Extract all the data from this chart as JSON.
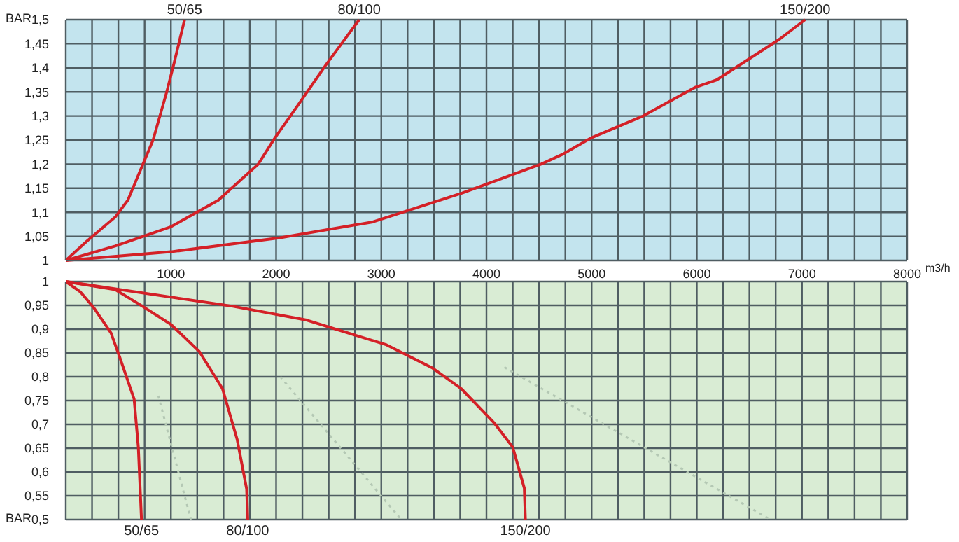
{
  "chart_data": [
    {
      "type": "line",
      "xlabel": "m3/h",
      "ylabel": "BAR",
      "xlim": [
        0,
        8000
      ],
      "xticks": [
        {
          "value": 0,
          "label": null
        },
        {
          "value": 250,
          "label": null
        },
        {
          "value": 500,
          "label": null
        },
        {
          "value": 750,
          "label": null
        },
        1000,
        {
          "value": 1250,
          "label": null
        },
        {
          "value": 1500,
          "label": null
        },
        {
          "value": 1750,
          "label": null
        },
        2000,
        {
          "value": 2250,
          "label": null
        },
        {
          "value": 2500,
          "label": null
        },
        {
          "value": 2750,
          "label": null
        },
        3000,
        {
          "value": 3250,
          "label": null
        },
        {
          "value": 3500,
          "label": null
        },
        {
          "value": 3750,
          "label": null
        },
        4000,
        {
          "value": 4250,
          "label": null
        },
        {
          "value": 4500,
          "label": null
        },
        {
          "value": 4750,
          "label": null
        },
        5000,
        {
          "value": 5250,
          "label": null
        },
        {
          "value": 5500,
          "label": null
        },
        {
          "value": 5750,
          "label": null
        },
        6000,
        {
          "value": 6250,
          "label": null
        },
        {
          "value": 6500,
          "label": null
        },
        {
          "value": 6750,
          "label": null
        },
        7000,
        {
          "value": 7250,
          "label": null
        },
        {
          "value": 7500,
          "label": null
        },
        {
          "value": 7750,
          "label": null
        },
        8000
      ],
      "ylim": [
        1,
        1.5
      ],
      "yticks": [
        1,
        {
          "value": 1.05,
          "label": "1,05"
        },
        {
          "value": 1.1,
          "label": "1,1"
        },
        {
          "value": 1.15,
          "label": "1,15"
        },
        {
          "value": 1.2,
          "label": "1,2"
        },
        {
          "value": 1.25,
          "label": "1,25"
        },
        {
          "value": 1.3,
          "label": "1,3"
        },
        {
          "value": 1.35,
          "label": "1,35"
        },
        {
          "value": 1.4,
          "label": "1,4"
        },
        {
          "value": 1.45,
          "label": "1,45"
        },
        {
          "value": 1.5,
          "label": "1,5"
        }
      ],
      "grid": true,
      "marker": "none",
      "line_style": "solid",
      "series": [
        {
          "name": "50/65",
          "color": "#d42027",
          "x": [
            0,
            200,
            470,
            590,
            830,
            960,
            1030,
            1130
          ],
          "values": [
            1,
            1.04,
            1.09,
            1.125,
            1.25,
            1.35,
            1.41,
            1.5
          ]
        },
        {
          "name": "80/100",
          "color": "#d42027",
          "x": [
            0,
            470,
            1000,
            1450,
            1830,
            1990,
            2200,
            2470,
            2790
          ],
          "values": [
            1,
            1.03,
            1.07,
            1.125,
            1.2,
            1.255,
            1.32,
            1.405,
            1.5
          ]
        },
        {
          "name": "150/200",
          "color": "#d42027",
          "x": [
            0,
            1000,
            2030,
            2920,
            3770,
            4520,
            4720,
            5000,
            5490,
            5990,
            6190,
            6790,
            7030
          ],
          "values": [
            1,
            1.018,
            1.047,
            1.08,
            1.14,
            1.2,
            1.22,
            1.255,
            1.3,
            1.36,
            1.375,
            1.46,
            1.5
          ]
        }
      ]
    },
    {
      "type": "line",
      "ylabel": "BAR",
      "xlim": [
        0,
        8000
      ],
      "tick_labels": "y",
      "xticks": [
        0,
        {
          "value": 250,
          "label": null
        },
        {
          "value": 500,
          "label": null
        },
        {
          "value": 750,
          "label": null
        },
        1000,
        {
          "value": 1250,
          "label": null
        },
        {
          "value": 1500,
          "label": null
        },
        {
          "value": 1750,
          "label": null
        },
        2000,
        {
          "value": 2250,
          "label": null
        },
        {
          "value": 2500,
          "label": null
        },
        {
          "value": 2750,
          "label": null
        },
        3000,
        {
          "value": 3250,
          "label": null
        },
        {
          "value": 3500,
          "label": null
        },
        {
          "value": 3750,
          "label": null
        },
        4000,
        {
          "value": 4250,
          "label": null
        },
        {
          "value": 4500,
          "label": null
        },
        {
          "value": 4750,
          "label": null
        },
        5000,
        {
          "value": 5250,
          "label": null
        },
        {
          "value": 5500,
          "label": null
        },
        {
          "value": 5750,
          "label": null
        },
        6000,
        {
          "value": 6250,
          "label": null
        },
        {
          "value": 6500,
          "label": null
        },
        {
          "value": 6750,
          "label": null
        },
        7000,
        {
          "value": 7250,
          "label": null
        },
        {
          "value": 7500,
          "label": null
        },
        {
          "value": 7750,
          "label": null
        },
        8000
      ],
      "ylim": [
        0.5,
        1
      ],
      "yticks": [
        1,
        {
          "value": 0.95,
          "label": "0,95"
        },
        {
          "value": 0.9,
          "label": "0,9"
        },
        {
          "value": 0.85,
          "label": "0,85"
        },
        {
          "value": 0.8,
          "label": "0,8"
        },
        {
          "value": 0.75,
          "label": "0,75"
        },
        {
          "value": 0.7,
          "label": "0,7"
        },
        {
          "value": 0.65,
          "label": "0,65"
        },
        {
          "value": 0.6,
          "label": "0,6"
        },
        {
          "value": 0.55,
          "label": "0,55"
        },
        {
          "value": 0.5,
          "label": "0,5"
        }
      ],
      "grid": true,
      "marker": "none",
      "line_style": "solid",
      "series": [
        {
          "color": "#b4c8b4",
          "line_style": "dotted",
          "x": [
            880,
            1190
          ],
          "values": [
            0.76,
            0.5
          ]
        },
        {
          "color": "#b4c8b4",
          "line_style": "dotted",
          "x": [
            2040,
            3190
          ],
          "values": [
            0.8,
            0.5
          ]
        },
        {
          "color": "#b4c8b4",
          "line_style": "dotted",
          "x": [
            4170,
            6700
          ],
          "values": [
            0.82,
            0.5
          ]
        },
        {
          "name": "50/65",
          "color": "#d42027",
          "x": [
            0,
            140,
            270,
            430,
            510,
            650,
            690,
            720
          ],
          "values": [
            1,
            0.978,
            0.944,
            0.892,
            0.843,
            0.753,
            0.652,
            0.5
          ]
        },
        {
          "name": "80/100",
          "color": "#d42027",
          "x": [
            0,
            470,
            730,
            1000,
            1270,
            1490,
            1630,
            1720,
            1730
          ],
          "values": [
            1,
            0.983,
            0.948,
            0.91,
            0.853,
            0.775,
            0.668,
            0.564,
            0.5
          ]
        },
        {
          "name": "150/200",
          "color": "#d42027",
          "x": [
            0,
            1590,
            2290,
            3050,
            3490,
            3760,
            4070,
            4250,
            4360,
            4370
          ],
          "values": [
            1,
            0.948,
            0.919,
            0.867,
            0.818,
            0.775,
            0.704,
            0.652,
            0.566,
            0.5
          ]
        }
      ]
    }
  ]
}
